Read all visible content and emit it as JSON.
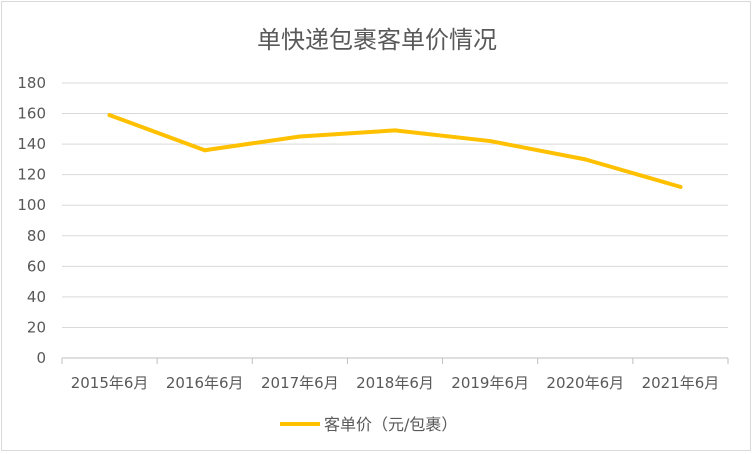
{
  "chart_data": {
    "type": "line",
    "title": "单快递包裹客单价情况",
    "xlabel": "",
    "ylabel": "",
    "categories": [
      "2015年6月",
      "2016年6月",
      "2017年6月",
      "2018年6月",
      "2019年6月",
      "2020年6月",
      "2021年6月"
    ],
    "series": [
      {
        "name": "客单价（元/包裹）",
        "values": [
          159,
          136,
          145,
          149,
          142,
          130,
          112
        ]
      }
    ],
    "ylim": [
      0,
      180
    ],
    "yticks": [
      "0",
      "20",
      "40",
      "60",
      "80",
      "100",
      "120",
      "140",
      "160",
      "180"
    ],
    "grid": true,
    "legend_position": "bottom",
    "colors": {
      "series": "#FFC000",
      "grid": "#d9d9d9",
      "text": "#595959"
    }
  }
}
